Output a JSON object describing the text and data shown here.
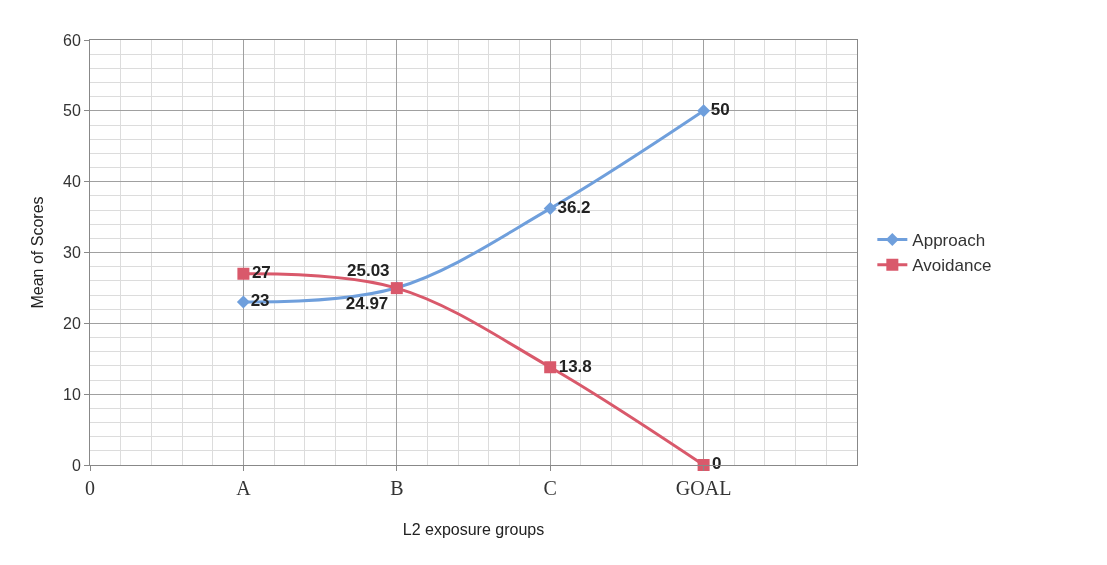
{
  "chart_data": {
    "type": "line",
    "xlabel": "L2 exposure groups",
    "ylabel": "Mean of Scores",
    "categories": [
      "0",
      "A",
      "B",
      "C",
      "GOAL"
    ],
    "series": [
      {
        "name": "Approach",
        "color": "#6f9fdc",
        "values": [
          null,
          23,
          25.03,
          36.2,
          50
        ],
        "marker": "diamond",
        "value_labels": [
          null,
          "23",
          "25.03",
          "36.2",
          "50"
        ]
      },
      {
        "name": "Avoidance",
        "color": "#d9596b",
        "values": [
          null,
          27,
          24.97,
          13.8,
          0
        ],
        "marker": "square",
        "value_labels": [
          null,
          "27",
          "24.97",
          "13.8",
          "0"
        ]
      }
    ],
    "ylim": [
      0,
      60
    ],
    "yticks": [
      0,
      10,
      20,
      30,
      40,
      50,
      60
    ],
    "grid": true,
    "legend": "right"
  }
}
